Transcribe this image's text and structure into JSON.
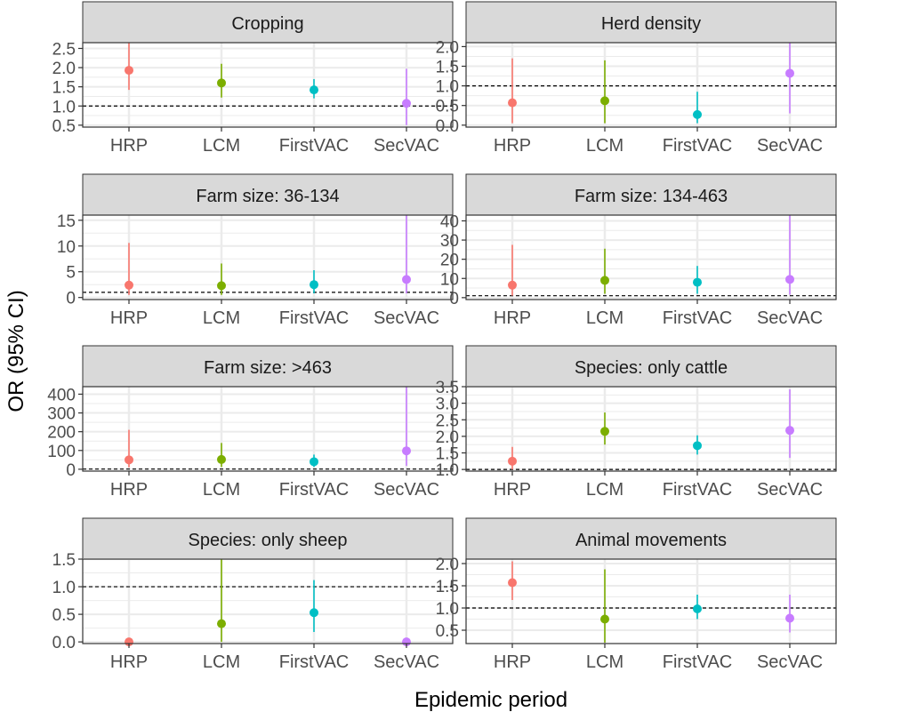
{
  "figure": {
    "xlabel": "Epidemic period",
    "ylabel": "OR (95% CI)"
  },
  "colors": {
    "HRP": "#F8766D",
    "LCM": "#7CAE00",
    "FirstVAC": "#00BFC4",
    "SecVAC": "#C77CFF",
    "strip_fill": "#D9D9D9",
    "gridline": "#EBEBEB",
    "reference_line": "#000000"
  },
  "chart_data": [
    {
      "type": "scatter",
      "title": "Cropping",
      "categories": [
        "HRP",
        "LCM",
        "FirstVAC",
        "SecVAC"
      ],
      "values": [
        1.93,
        1.6,
        1.42,
        1.07
      ],
      "lower": [
        1.42,
        1.22,
        1.2,
        0.5
      ],
      "upper": [
        2.65,
        2.1,
        1.7,
        1.97
      ],
      "ylim": [
        0.45,
        2.65
      ],
      "yticks": [
        0.5,
        1.0,
        1.5,
        2.0,
        2.5
      ],
      "ytick_labels": [
        "0.5",
        "1.0",
        "1.5",
        "2.0",
        "2.5"
      ],
      "reference": 1
    },
    {
      "type": "scatter",
      "title": "Herd density",
      "categories": [
        "HRP",
        "LCM",
        "FirstVAC",
        "SecVAC"
      ],
      "values": [
        0.57,
        0.62,
        0.27,
        1.32
      ],
      "lower": [
        0.05,
        0.05,
        0.05,
        0.3
      ],
      "upper": [
        1.7,
        1.65,
        0.85,
        2.1
      ],
      "ylim": [
        -0.05,
        2.1
      ],
      "yticks": [
        0.0,
        0.5,
        1.0,
        1.5,
        2.0
      ],
      "ytick_labels": [
        "0.0",
        "0.5",
        "1.0",
        "1.5",
        "2.0"
      ],
      "reference": 1
    },
    {
      "type": "scatter",
      "title": "Farm size: 36-134",
      "categories": [
        "HRP",
        "LCM",
        "FirstVAC",
        "SecVAC"
      ],
      "values": [
        2.4,
        2.3,
        2.5,
        3.5
      ],
      "lower": [
        0.5,
        0.5,
        0.8,
        0.8
      ],
      "upper": [
        10.6,
        6.6,
        5.3,
        16.0
      ],
      "ylim": [
        -0.4,
        16.0
      ],
      "yticks": [
        0,
        5,
        10,
        15
      ],
      "ytick_labels": [
        "0",
        "5",
        "10",
        "15"
      ],
      "reference": 1
    },
    {
      "type": "scatter",
      "title": "Farm size: 134-463",
      "categories": [
        "HRP",
        "LCM",
        "FirstVAC",
        "SecVAC"
      ],
      "values": [
        6.5,
        9.0,
        8.0,
        9.5
      ],
      "lower": [
        1.0,
        2.0,
        2.0,
        1.5
      ],
      "upper": [
        27.5,
        25.5,
        16.5,
        43.0
      ],
      "ylim": [
        -1.0,
        43.0
      ],
      "yticks": [
        0,
        10,
        20,
        30,
        40
      ],
      "ytick_labels": [
        "0",
        "10",
        "20",
        "30",
        "40"
      ],
      "reference": 1
    },
    {
      "type": "scatter",
      "title": "Farm size: >463",
      "categories": [
        "HRP",
        "LCM",
        "FirstVAC",
        "SecVAC"
      ],
      "values": [
        50,
        52,
        40,
        98
      ],
      "lower": [
        10,
        12,
        12,
        18
      ],
      "upper": [
        210,
        140,
        78,
        440
      ],
      "ylim": [
        -10,
        440
      ],
      "yticks": [
        0,
        100,
        200,
        300,
        400
      ],
      "ytick_labels": [
        "0",
        "100",
        "200",
        "300",
        "400"
      ],
      "reference": 1
    },
    {
      "type": "scatter",
      "title": "Species: only cattle",
      "categories": [
        "HRP",
        "LCM",
        "FirstVAC",
        "SecVAC"
      ],
      "values": [
        1.25,
        2.15,
        1.72,
        2.18
      ],
      "lower": [
        1.0,
        1.75,
        1.45,
        1.35
      ],
      "upper": [
        1.68,
        2.72,
        2.03,
        3.42
      ],
      "ylim": [
        0.95,
        3.5
      ],
      "yticks": [
        1.0,
        1.5,
        2.0,
        2.5,
        3.0,
        3.5
      ],
      "ytick_labels": [
        "1.0",
        "1.5",
        "2.0",
        "2.5",
        "3.0",
        "3.5"
      ],
      "reference": 1
    },
    {
      "type": "scatter",
      "title": "Species: only sheep",
      "categories": [
        "HRP",
        "LCM",
        "FirstVAC",
        "SecVAC"
      ],
      "values": [
        0.0,
        0.33,
        0.53,
        0.0
      ],
      "lower": [
        0.0,
        0.0,
        0.18,
        0.0
      ],
      "upper": [
        0.0,
        1.5,
        1.12,
        0.0
      ],
      "ylim": [
        -0.03,
        1.5
      ],
      "yticks": [
        0.0,
        0.5,
        1.0,
        1.5
      ],
      "ytick_labels": [
        "0.0",
        "0.5",
        "1.0",
        "1.5"
      ],
      "reference": 1
    },
    {
      "type": "scatter",
      "title": "Animal movements",
      "categories": [
        "HRP",
        "LCM",
        "FirstVAC",
        "SecVAC"
      ],
      "values": [
        1.57,
        0.75,
        0.98,
        0.77
      ],
      "lower": [
        1.18,
        0.22,
        0.75,
        0.45
      ],
      "upper": [
        2.05,
        1.87,
        1.3,
        1.3
      ],
      "ylim": [
        0.2,
        2.1
      ],
      "yticks": [
        0.5,
        1.0,
        1.5,
        2.0
      ],
      "ytick_labels": [
        "0.5",
        "1.0",
        "1.5",
        "2.0"
      ],
      "reference": 1
    }
  ]
}
